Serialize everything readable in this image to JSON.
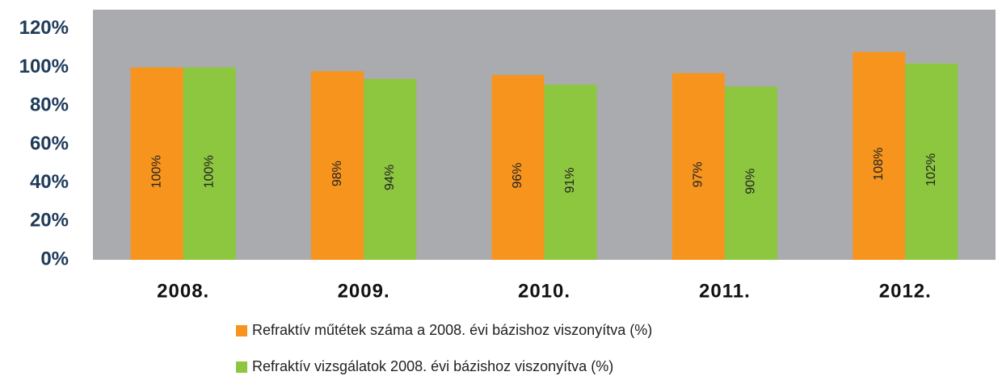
{
  "chart_data": {
    "type": "bar",
    "categories": [
      "2008.",
      "2009.",
      "2010.",
      "2011.",
      "2012."
    ],
    "series": [
      {
        "name": "Refraktív műtétek száma a 2008. évi bázishoz viszonyítva (%)",
        "color": "#f7941d",
        "values": [
          100,
          98,
          96,
          97,
          108
        ],
        "value_labels": [
          "100%",
          "98%",
          "96%",
          "97%",
          "108%"
        ]
      },
      {
        "name": "Refraktív vizsgálatok 2008. évi bázishoz viszonyítva (%)",
        "color": "#8dc63f",
        "values": [
          100,
          94,
          91,
          90,
          102
        ],
        "value_labels": [
          "100%",
          "94%",
          "91%",
          "90%",
          "102%"
        ]
      }
    ],
    "ylim": [
      0,
      130
    ],
    "yticks": [
      {
        "value": 0,
        "label": "0%"
      },
      {
        "value": 20,
        "label": "20%"
      },
      {
        "value": 40,
        "label": "40%"
      },
      {
        "value": 60,
        "label": "60%"
      },
      {
        "value": 80,
        "label": "80%"
      },
      {
        "value": 100,
        "label": "100%"
      },
      {
        "value": 120,
        "label": "120%"
      }
    ],
    "grid": false
  }
}
